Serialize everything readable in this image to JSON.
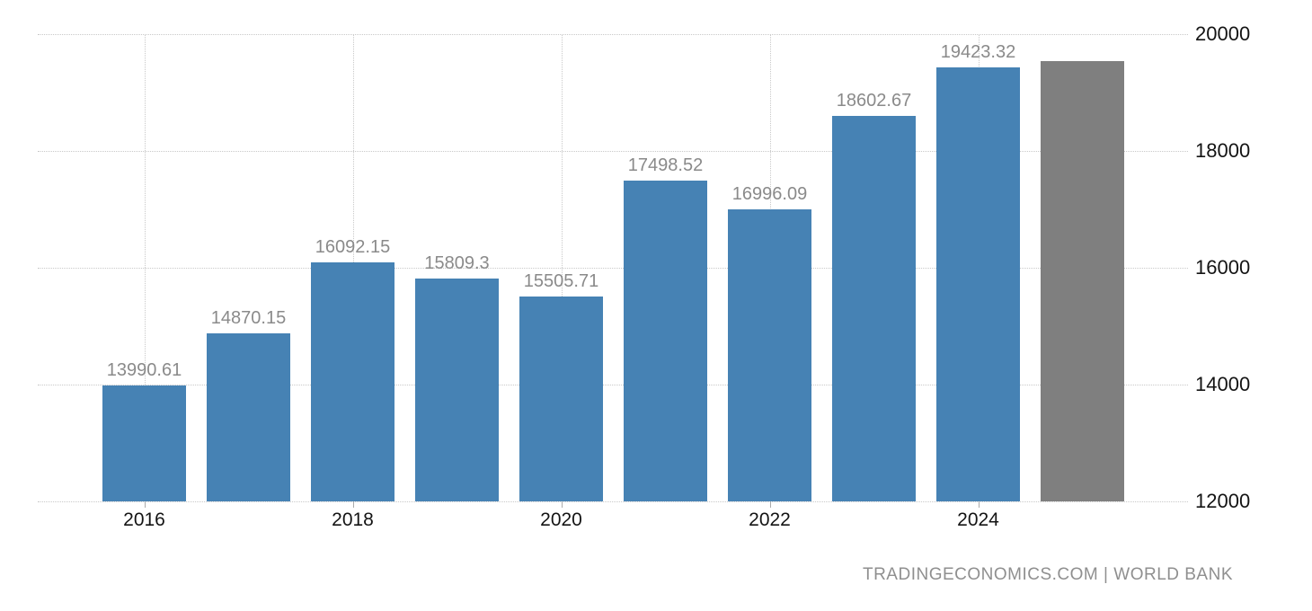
{
  "chart_data": {
    "type": "bar",
    "title": "",
    "xlabel": "",
    "ylabel": "",
    "ylim": [
      12000,
      20000
    ],
    "grid": "dotted",
    "legend": "none",
    "y_tick_labels": [
      "20000",
      "18000",
      "16000",
      "14000",
      "12000"
    ],
    "y_tick_values": [
      20000,
      18000,
      16000,
      14000,
      12000
    ],
    "x_tick_labels": [
      "2016",
      "2018",
      "2020",
      "2022",
      "2024"
    ],
    "x_tick_bar_indexes": [
      0,
      2,
      4,
      6,
      8
    ],
    "bars": [
      {
        "x": "2016",
        "value": 13990.61,
        "label": "13990.61",
        "style": "actual"
      },
      {
        "x": "2017",
        "value": 14870.15,
        "label": "14870.15",
        "style": "actual"
      },
      {
        "x": "2018",
        "value": 16092.15,
        "label": "16092.15",
        "style": "actual"
      },
      {
        "x": "2019",
        "value": 15809.3,
        "label": "15809.3",
        "style": "actual"
      },
      {
        "x": "2020",
        "value": 15505.71,
        "label": "15505.71",
        "style": "actual"
      },
      {
        "x": "2021",
        "value": 17498.52,
        "label": "17498.52",
        "style": "actual"
      },
      {
        "x": "2022",
        "value": 16996.09,
        "label": "16996.09",
        "style": "actual"
      },
      {
        "x": "2023",
        "value": 18602.67,
        "label": "18602.67",
        "style": "actual"
      },
      {
        "x": "2024",
        "value": 19423.32,
        "label": "19423.32",
        "style": "actual"
      },
      {
        "x": "",
        "value": 19540,
        "label": "",
        "style": "forecast",
        "value_estimated": true
      }
    ],
    "colors": {
      "bar_actual": "#4682B4",
      "bar_forecast": "#7F7F7F",
      "grid": "#c9c9c9",
      "axis_text": "#141414",
      "value_label": "#8a8a8a"
    }
  },
  "footer": {
    "attribution": "TRADINGECONOMICS.COM | WORLD BANK"
  }
}
